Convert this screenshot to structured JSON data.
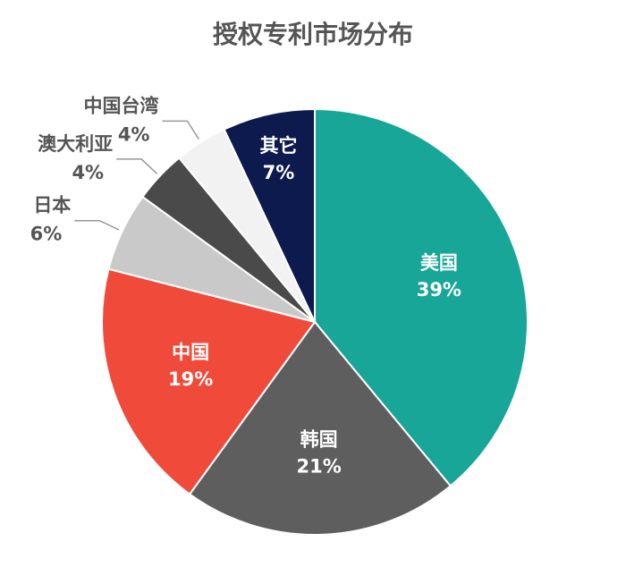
{
  "chart_data": {
    "type": "pie",
    "title": "授权专利市场分布",
    "categories": [
      "美国",
      "韩国",
      "中国",
      "日本",
      "澳大利亚",
      "中国台湾",
      "其它"
    ],
    "values": [
      39,
      21,
      19,
      6,
      4,
      4,
      7
    ],
    "value_labels": [
      "39%",
      "21%",
      "19%",
      "6%",
      "4%",
      "4%",
      "7%"
    ],
    "colors": [
      "#17a697",
      "#5e5e5e",
      "#f04a3a",
      "#c9c9c9",
      "#4a4a4a",
      "#f2f2f2",
      "#0d1a4e"
    ]
  }
}
